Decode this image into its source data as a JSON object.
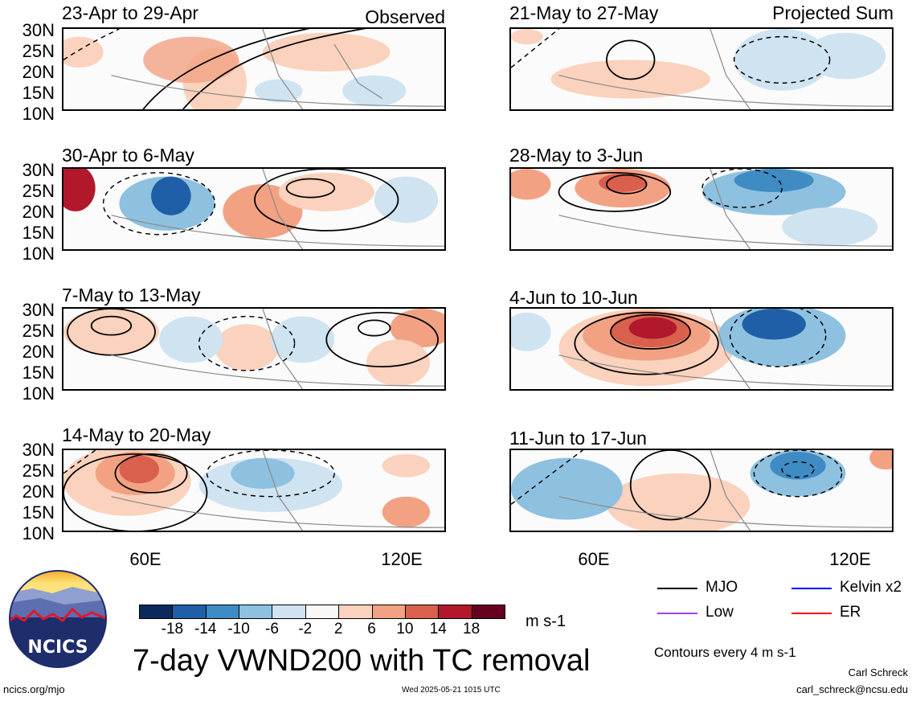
{
  "panels_left": [
    {
      "date": "23-Apr to 29-Apr",
      "note": "Observed"
    },
    {
      "date": "30-Apr to 6-May",
      "note": ""
    },
    {
      "date": "7-May to 13-May",
      "note": ""
    },
    {
      "date": "14-May to 20-May",
      "note": ""
    }
  ],
  "panels_right": [
    {
      "date": "21-May to 27-May",
      "note": "Projected Sum"
    },
    {
      "date": "28-May to 3-Jun",
      "note": ""
    },
    {
      "date": "4-Jun to 10-Jun",
      "note": ""
    },
    {
      "date": "11-Jun to 17-Jun",
      "note": ""
    }
  ],
  "latitude_labels": [
    "30N",
    "25N",
    "20N",
    "15N",
    "10N"
  ],
  "longitude_labels": [
    "60E",
    "120E"
  ],
  "colorbar": {
    "ticks": [
      "-18",
      "-14",
      "-10",
      "-6",
      "-2",
      "2",
      "6",
      "10",
      "14",
      "18"
    ],
    "colors": [
      "#0b2a5c",
      "#1f5fa8",
      "#3f8bc4",
      "#8ec1df",
      "#cfe3f1",
      "#f8f8f8",
      "#fad2bd",
      "#f2a283",
      "#d8604d",
      "#b2182b",
      "#67001f"
    ],
    "units": "m s-1"
  },
  "title": "7-day VWND200 with TC removal",
  "legend": {
    "items": [
      {
        "label": "MJO",
        "color": "#000000"
      },
      {
        "label": "Kelvin x2",
        "color": "#0000ff"
      },
      {
        "label": "Low",
        "color": "#a040ff"
      },
      {
        "label": "ER",
        "color": "#ff0000"
      }
    ],
    "contour_note": "Contours every 4 m s-1"
  },
  "logo": {
    "text": "NCICS"
  },
  "footer": {
    "site": "ncics.org/mjo",
    "timestamp": "Wed 2025-05-21 1015 UTC",
    "author": "Carl Schreck",
    "email": "carl_schreck@ncsu.edu"
  }
}
